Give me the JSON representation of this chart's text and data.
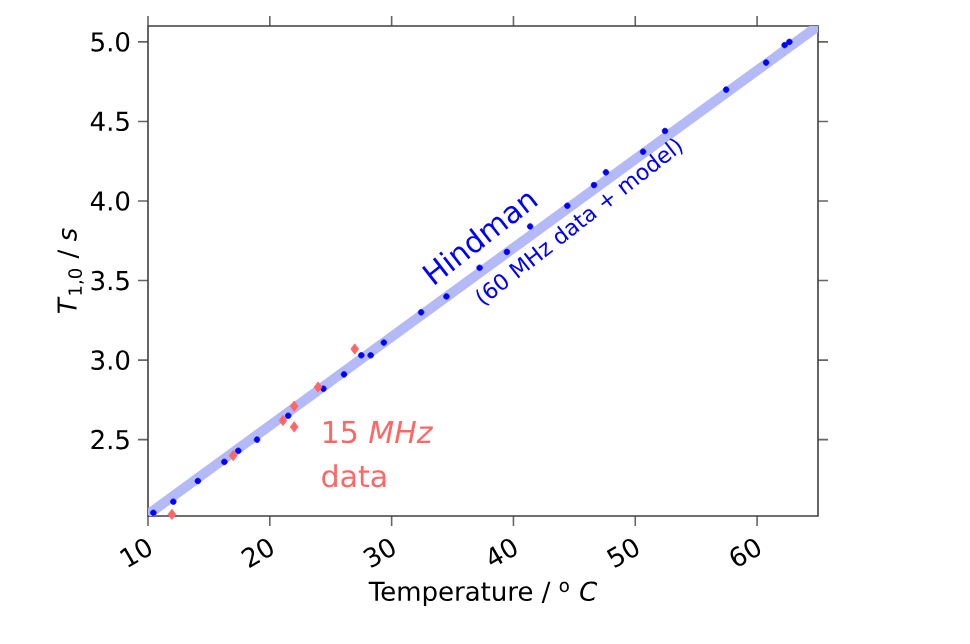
{
  "chart_data": {
    "type": "scatter",
    "xlabel": "Temperature / $^{o}$ *C*",
    "ylabel": "*T*$_{1,0}$ / *s*",
    "xlim": [
      10,
      65
    ],
    "ylim": [
      2.02,
      5.1
    ],
    "xticks": [
      10,
      20,
      30,
      40,
      50,
      60
    ],
    "yticks": [
      {
        "value": 2.5,
        "label": "2.5"
      },
      {
        "value": 3,
        "label": "3.0"
      },
      {
        "value": 3.5,
        "label": "3.5"
      },
      {
        "value": 4,
        "label": "4.0"
      },
      {
        "value": 4.5,
        "label": "4.5"
      },
      {
        "value": 5,
        "label": "5.0"
      }
    ],
    "grid": false,
    "series": [
      {
        "type": "line",
        "color": "#b3baf7",
        "marker": "none",
        "x": [
          10,
          65
        ],
        "values": [
          2.03,
          5.1
        ]
      },
      {
        "color": "#0000ff",
        "marker": "circle",
        "x": [
          10.44,
          12.08,
          14.09,
          16.27,
          17.41,
          18.95,
          21.51,
          24.4,
          26.09,
          27.51,
          28.28,
          29.36,
          32.42,
          34.5,
          37.22,
          39.46,
          41.37,
          44.42,
          46.61,
          47.59,
          50.64,
          52.44,
          57.46,
          60.74,
          62.26,
          62.65
        ],
        "values": [
          2.04,
          2.11,
          2.24,
          2.36,
          2.43,
          2.5,
          2.65,
          2.82,
          2.91,
          3.03,
          3.03,
          3.11,
          3.3,
          3.4,
          3.58,
          3.68,
          3.84,
          3.97,
          4.1,
          4.18,
          4.31,
          4.44,
          4.7,
          4.87,
          4.98,
          5.0
        ]
      },
      {
        "color": "#ff6666",
        "marker": "diamond",
        "x": [
          11.96,
          16.99,
          21.08,
          22.0,
          22.0,
          23.96,
          26.97
        ],
        "values": [
          2.03,
          2.4,
          2.62,
          2.71,
          2.58,
          2.83,
          3.07
        ]
      }
    ],
    "annotations": [
      "Hindman",
      "(60 MHz data + model)",
      "15 *MHz*",
      "data"
    ]
  }
}
